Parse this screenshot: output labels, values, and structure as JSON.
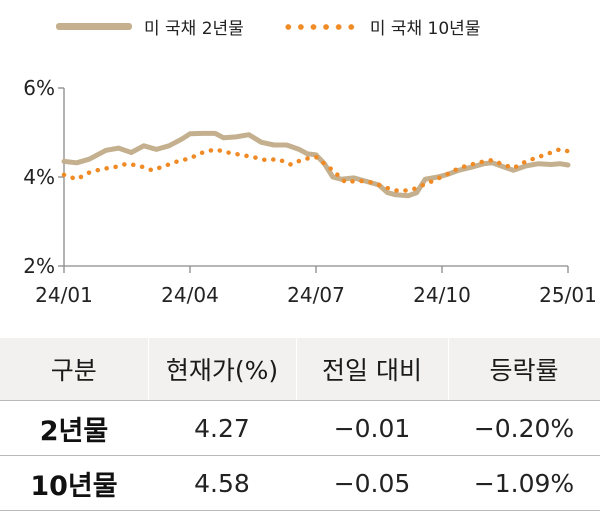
{
  "legend": {
    "series1": "미 국채 2년물",
    "series2": "미 국채 10년물"
  },
  "colors": {
    "series1": "#c4b08e",
    "series2": "#f08a24",
    "axis": "#8a8a8a",
    "header_bg": "#f2f1f0"
  },
  "chart_data": {
    "type": "line",
    "y_ticks": [
      "6%",
      "4%",
      "2%"
    ],
    "x_ticks": [
      "24/01",
      "24/04",
      "24/07",
      "24/10",
      "25/01"
    ],
    "ylim": [
      2,
      6
    ],
    "xlim": [
      0,
      12
    ],
    "grid": false,
    "legend_position": "top",
    "series": [
      {
        "name": "미 국채 2년물",
        "style": "solid",
        "points": [
          [
            0,
            4.35
          ],
          [
            0.3,
            4.32
          ],
          [
            0.6,
            4.4
          ],
          [
            1.0,
            4.6
          ],
          [
            1.3,
            4.65
          ],
          [
            1.6,
            4.55
          ],
          [
            1.9,
            4.7
          ],
          [
            2.2,
            4.62
          ],
          [
            2.5,
            4.7
          ],
          [
            2.8,
            4.85
          ],
          [
            3.0,
            4.97
          ],
          [
            3.3,
            4.98
          ],
          [
            3.6,
            4.98
          ],
          [
            3.8,
            4.88
          ],
          [
            4.1,
            4.9
          ],
          [
            4.4,
            4.95
          ],
          [
            4.7,
            4.78
          ],
          [
            5.0,
            4.72
          ],
          [
            5.3,
            4.72
          ],
          [
            5.6,
            4.62
          ],
          [
            5.8,
            4.52
          ],
          [
            6.0,
            4.5
          ],
          [
            6.2,
            4.3
          ],
          [
            6.4,
            4.0
          ],
          [
            6.6,
            3.95
          ],
          [
            6.9,
            3.98
          ],
          [
            7.2,
            3.9
          ],
          [
            7.5,
            3.82
          ],
          [
            7.7,
            3.65
          ],
          [
            7.9,
            3.6
          ],
          [
            8.2,
            3.58
          ],
          [
            8.4,
            3.65
          ],
          [
            8.6,
            3.95
          ],
          [
            8.9,
            4.0
          ],
          [
            9.1,
            4.05
          ],
          [
            9.4,
            4.15
          ],
          [
            9.7,
            4.22
          ],
          [
            10.0,
            4.3
          ],
          [
            10.2,
            4.32
          ],
          [
            10.4,
            4.25
          ],
          [
            10.7,
            4.15
          ],
          [
            11.0,
            4.25
          ],
          [
            11.3,
            4.3
          ],
          [
            11.6,
            4.28
          ],
          [
            11.8,
            4.3
          ],
          [
            12.0,
            4.27
          ]
        ]
      },
      {
        "name": "미 국채 10년물",
        "style": "dotted",
        "points": [
          [
            0,
            4.05
          ],
          [
            0.3,
            3.95
          ],
          [
            0.6,
            4.1
          ],
          [
            0.9,
            4.18
          ],
          [
            1.2,
            4.22
          ],
          [
            1.5,
            4.3
          ],
          [
            1.8,
            4.25
          ],
          [
            2.1,
            4.15
          ],
          [
            2.4,
            4.25
          ],
          [
            2.7,
            4.35
          ],
          [
            3.0,
            4.42
          ],
          [
            3.3,
            4.55
          ],
          [
            3.6,
            4.62
          ],
          [
            3.9,
            4.55
          ],
          [
            4.2,
            4.5
          ],
          [
            4.5,
            4.45
          ],
          [
            4.8,
            4.38
          ],
          [
            5.1,
            4.4
          ],
          [
            5.4,
            4.28
          ],
          [
            5.7,
            4.4
          ],
          [
            6.0,
            4.45
          ],
          [
            6.2,
            4.3
          ],
          [
            6.4,
            4.15
          ],
          [
            6.7,
            3.88
          ],
          [
            7.0,
            3.92
          ],
          [
            7.3,
            3.88
          ],
          [
            7.5,
            3.82
          ],
          [
            7.8,
            3.72
          ],
          [
            8.0,
            3.68
          ],
          [
            8.3,
            3.72
          ],
          [
            8.5,
            3.8
          ],
          [
            8.8,
            3.92
          ],
          [
            9.1,
            4.05
          ],
          [
            9.4,
            4.2
          ],
          [
            9.7,
            4.28
          ],
          [
            10.0,
            4.35
          ],
          [
            10.2,
            4.38
          ],
          [
            10.4,
            4.3
          ],
          [
            10.7,
            4.2
          ],
          [
            11.0,
            4.35
          ],
          [
            11.3,
            4.45
          ],
          [
            11.6,
            4.55
          ],
          [
            11.8,
            4.62
          ],
          [
            12.0,
            4.58
          ]
        ]
      }
    ]
  },
  "table": {
    "headers": [
      "구분",
      "현재가(%)",
      "전일 대비",
      "등락률"
    ],
    "rows": [
      [
        "2년물",
        "4.27",
        "−0.01",
        "−0.20%"
      ],
      [
        "10년물",
        "4.58",
        "−0.05",
        "−1.09%"
      ]
    ]
  }
}
